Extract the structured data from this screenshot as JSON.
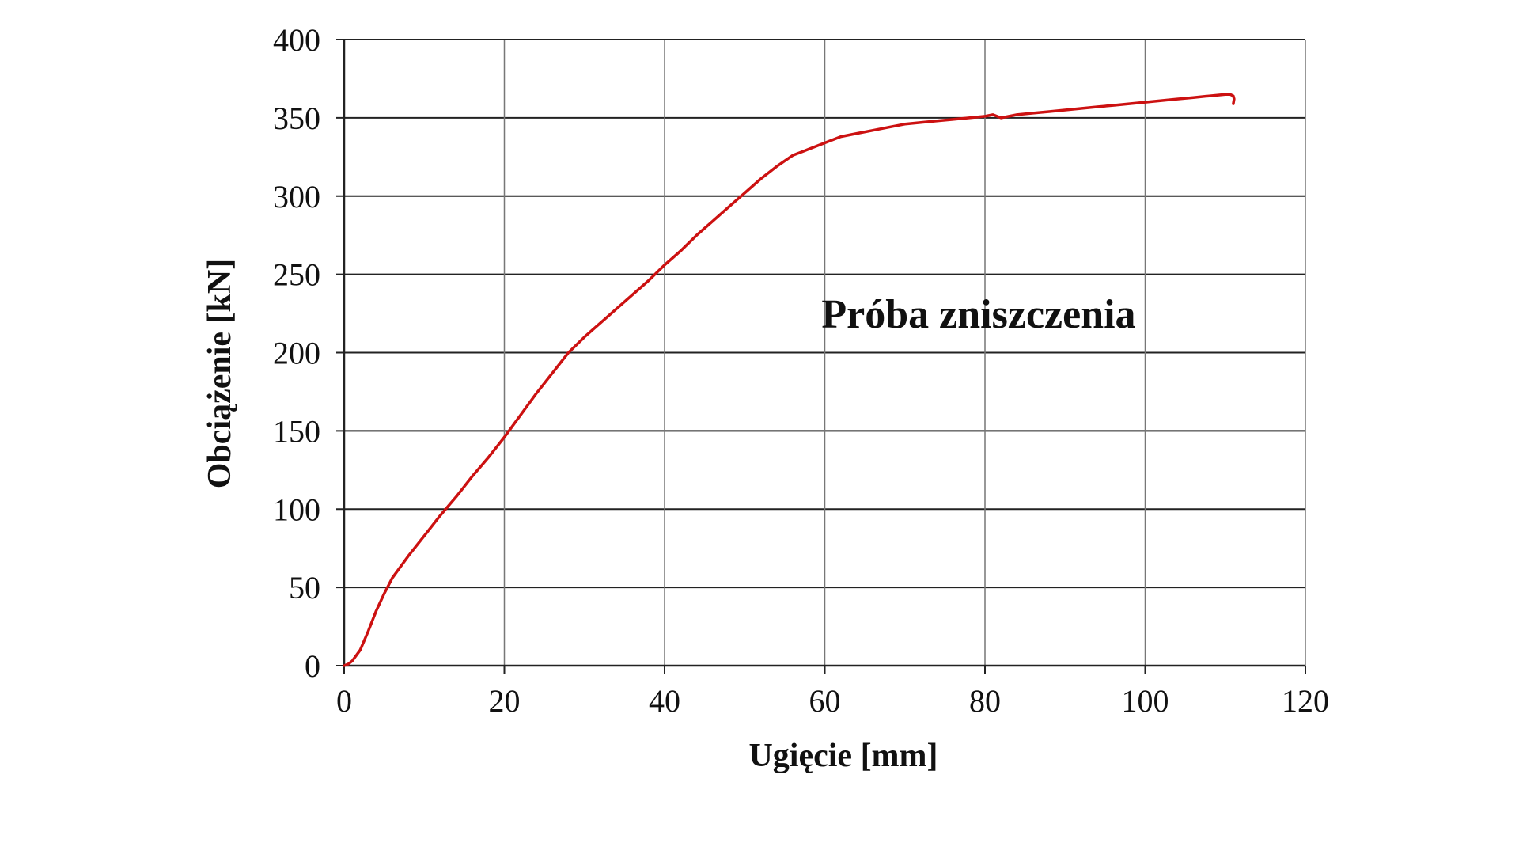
{
  "chart_data": {
    "type": "line",
    "title": "",
    "xlabel": "Ugięcie [mm]",
    "ylabel": "Obciążenie [kN]",
    "xlim": [
      0,
      120
    ],
    "ylim": [
      0,
      400
    ],
    "xticks": [
      0,
      20,
      40,
      60,
      80,
      100,
      120
    ],
    "yticks": [
      0,
      50,
      100,
      150,
      200,
      250,
      300,
      350,
      400
    ],
    "grid": true,
    "annotation": "Próba zniszczenia",
    "series_color": "#cc1111",
    "series": [
      {
        "x": [
          0,
          0.5,
          1,
          2,
          3,
          4,
          5,
          6,
          8,
          10,
          12,
          14,
          16,
          18,
          20,
          22,
          24,
          26,
          28,
          30,
          32,
          34,
          36,
          38,
          40,
          42,
          44,
          46,
          48,
          50,
          52,
          54,
          56,
          58,
          60,
          62,
          64,
          66,
          68,
          70,
          72,
          74,
          76,
          78,
          80,
          81,
          82,
          84,
          86,
          88,
          90,
          92,
          94,
          96,
          98,
          100,
          102,
          104,
          106,
          108,
          109,
          110,
          110.6,
          111,
          111.1,
          111
        ],
        "y": [
          0,
          1,
          3,
          10,
          22,
          35,
          46,
          56,
          70,
          83,
          96,
          108,
          121,
          133,
          146,
          160,
          174,
          187,
          200,
          210,
          219,
          228,
          237,
          246,
          256,
          265,
          275,
          284,
          293,
          302,
          311,
          319,
          326,
          330,
          334,
          338,
          340,
          342,
          344,
          346,
          347,
          348,
          349,
          350,
          351,
          352,
          350,
          352,
          353,
          354,
          355,
          356,
          357,
          358,
          359,
          360,
          361,
          362,
          363,
          364,
          364.5,
          365,
          365,
          364,
          362,
          359
        ]
      }
    ]
  }
}
